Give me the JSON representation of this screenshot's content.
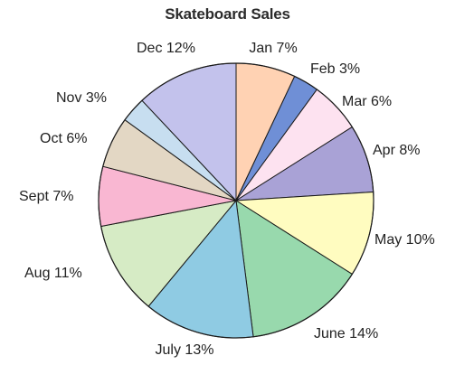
{
  "chart_data": {
    "type": "pie",
    "title": "Skateboard Sales",
    "start": "top, clockwise",
    "slices": [
      {
        "label": "Jan 7%",
        "category": "Jan",
        "value": 7,
        "color": "#ffd2b3"
      },
      {
        "label": "Feb 3%",
        "category": "Feb",
        "value": 3,
        "color": "#6f8fd6"
      },
      {
        "label": "Mar 6%",
        "category": "Mar",
        "value": 6,
        "color": "#fde2f0"
      },
      {
        "label": "Apr 8%",
        "category": "Apr",
        "value": 8,
        "color": "#a9a2d6"
      },
      {
        "label": "May 10%",
        "category": "May",
        "value": 10,
        "color": "#fffcc0"
      },
      {
        "label": "June 14%",
        "category": "June",
        "value": 14,
        "color": "#98d9ad"
      },
      {
        "label": "July 13%",
        "category": "July",
        "value": 13,
        "color": "#8fcbe3"
      },
      {
        "label": "Aug 11%",
        "category": "Aug",
        "value": 11,
        "color": "#d6ebc5"
      },
      {
        "label": "Sept 7%",
        "category": "Sept",
        "value": 7,
        "color": "#f9b7d2"
      },
      {
        "label": "Oct 6%",
        "category": "Oct",
        "value": 6,
        "color": "#e3d7c4"
      },
      {
        "label": "Nov 3%",
        "category": "Nov",
        "value": 3,
        "color": "#c7def0"
      },
      {
        "label": "Dec 12%",
        "category": "Dec",
        "value": 12,
        "color": "#c3c2ec"
      }
    ]
  }
}
